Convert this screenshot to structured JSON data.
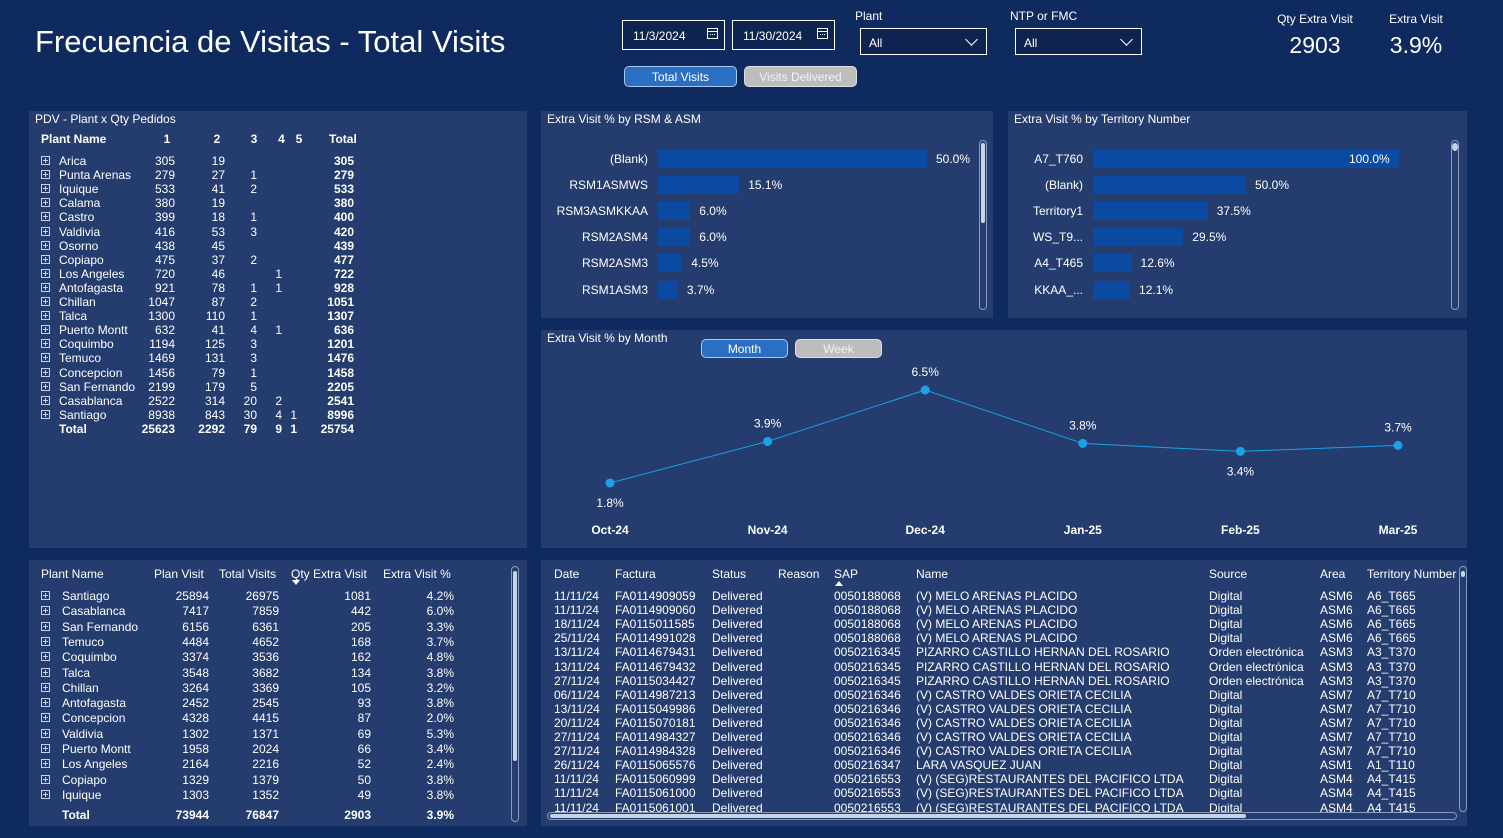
{
  "header": {
    "title": "Frecuencia de Visitas - Total Visits",
    "date_start": "11/3/2024",
    "date_end": "11/30/2024",
    "plant_label": "Plant",
    "plant_value": "All",
    "ntp_label": "NTP or FMC",
    "ntp_value": "All",
    "toggle_total": "Total Visits",
    "toggle_delivered": "Visits Delivered",
    "kpi_qty_label": "Qty Extra Visit",
    "kpi_qty_value": "2903",
    "kpi_pct_label": "Extra Visit",
    "kpi_pct_value": "3.9%"
  },
  "pdv_table": {
    "title": "PDV - Plant x Qty Pedidos",
    "columns": [
      "Plant Name",
      "1",
      "2",
      "3",
      "4",
      "5",
      "Total"
    ],
    "rows": [
      [
        "Arica",
        "305",
        "19",
        "",
        "",
        "",
        "305"
      ],
      [
        "Punta Arenas",
        "279",
        "27",
        "1",
        "",
        "",
        "279"
      ],
      [
        "Iquique",
        "533",
        "41",
        "2",
        "",
        "",
        "533"
      ],
      [
        "Calama",
        "380",
        "19",
        "",
        "",
        "",
        "380"
      ],
      [
        "Castro",
        "399",
        "18",
        "1",
        "",
        "",
        "400"
      ],
      [
        "Valdivia",
        "416",
        "53",
        "3",
        "",
        "",
        "420"
      ],
      [
        "Osorno",
        "438",
        "45",
        "",
        "",
        "",
        "439"
      ],
      [
        "Copiapo",
        "475",
        "37",
        "2",
        "",
        "",
        "477"
      ],
      [
        "Los Angeles",
        "720",
        "46",
        "",
        "1",
        "",
        "722"
      ],
      [
        "Antofagasta",
        "921",
        "78",
        "1",
        "1",
        "",
        "928"
      ],
      [
        "Chillan",
        "1047",
        "87",
        "2",
        "",
        "",
        "1051"
      ],
      [
        "Talca",
        "1300",
        "110",
        "1",
        "",
        "",
        "1307"
      ],
      [
        "Puerto Montt",
        "632",
        "41",
        "4",
        "1",
        "",
        "636"
      ],
      [
        "Coquimbo",
        "1194",
        "125",
        "3",
        "",
        "",
        "1201"
      ],
      [
        "Temuco",
        "1469",
        "131",
        "3",
        "",
        "",
        "1476"
      ],
      [
        "Concepcion",
        "1456",
        "79",
        "1",
        "",
        "",
        "1458"
      ],
      [
        "San Fernando",
        "2199",
        "179",
        "5",
        "",
        "",
        "2205"
      ],
      [
        "Casablanca",
        "2522",
        "314",
        "20",
        "2",
        "",
        "2541"
      ],
      [
        "Santiago",
        "8938",
        "843",
        "30",
        "4",
        "1",
        "8996"
      ]
    ],
    "total": [
      "Total",
      "25623",
      "2292",
      "79",
      "9",
      "1",
      "25754"
    ]
  },
  "rsm_chart": {
    "title": "Extra Visit % by RSM & ASM",
    "labels": [
      "(Blank)",
      "RSM1ASMWS",
      "RSM3ASMKKAA",
      "RSM2ASM4",
      "RSM2ASM3",
      "RSM1ASM3"
    ],
    "values": [
      50.0,
      15.1,
      6.0,
      6.0,
      4.5,
      3.7
    ],
    "value_labels": [
      "50.0%",
      "15.1%",
      "6.0%",
      "6.0%",
      "4.5%",
      "3.7%"
    ],
    "max": 50.0
  },
  "territory_chart": {
    "title": "Extra Visit % by Territory Number",
    "labels": [
      "A7_T760",
      "(Blank)",
      "Territory1",
      "WS_T9...",
      "A4_T465",
      "KKAA_..."
    ],
    "values": [
      100.0,
      50.0,
      37.5,
      29.5,
      12.6,
      12.1
    ],
    "value_labels": [
      "100.0%",
      "50.0%",
      "37.5%",
      "29.5%",
      "12.6%",
      "12.1%"
    ],
    "max": 100.0
  },
  "chart_data": {
    "type": "line",
    "title": "Extra Visit % by Month",
    "toggle_month": "Month",
    "toggle_week": "Week",
    "categories": [
      "Oct-24",
      "Nov-24",
      "Dec-24",
      "Jan-25",
      "Feb-25",
      "Mar-25"
    ],
    "values": [
      1.8,
      3.9,
      6.5,
      3.8,
      3.4,
      3.7
    ],
    "value_labels": [
      "1.8%",
      "3.9%",
      "6.5%",
      "3.8%",
      "3.4%",
      "3.7%"
    ],
    "label_position": [
      "below",
      "above",
      "above",
      "above",
      "below",
      "above"
    ],
    "ylim": [
      0,
      7.5
    ],
    "color": "#1aa3e8"
  },
  "plant_table": {
    "columns": [
      "Plant Name",
      "Plan Visit",
      "Total Visits",
      "Qty Extra Visit",
      "Extra Visit %"
    ],
    "rows": [
      [
        "Santiago",
        "25894",
        "26975",
        "1081",
        "4.2%"
      ],
      [
        "Casablanca",
        "7417",
        "7859",
        "442",
        "6.0%"
      ],
      [
        "San Fernando",
        "6156",
        "6361",
        "205",
        "3.3%"
      ],
      [
        "Temuco",
        "4484",
        "4652",
        "168",
        "3.7%"
      ],
      [
        "Coquimbo",
        "3374",
        "3536",
        "162",
        "4.8%"
      ],
      [
        "Talca",
        "3548",
        "3682",
        "134",
        "3.8%"
      ],
      [
        "Chillan",
        "3264",
        "3369",
        "105",
        "3.2%"
      ],
      [
        "Antofagasta",
        "2452",
        "2545",
        "93",
        "3.8%"
      ],
      [
        "Concepcion",
        "4328",
        "4415",
        "87",
        "2.0%"
      ],
      [
        "Valdivia",
        "1302",
        "1371",
        "69",
        "5.3%"
      ],
      [
        "Puerto Montt",
        "1958",
        "2024",
        "66",
        "3.4%"
      ],
      [
        "Los Angeles",
        "2164",
        "2216",
        "52",
        "2.4%"
      ],
      [
        "Copiapo",
        "1329",
        "1379",
        "50",
        "3.8%"
      ],
      [
        "Iquique",
        "1303",
        "1352",
        "49",
        "3.8%"
      ]
    ],
    "total": [
      "Total",
      "73944",
      "76847",
      "2903",
      "3.9%"
    ]
  },
  "detail_table": {
    "columns": [
      "Date",
      "Factura",
      "Status",
      "Reason",
      "SAP",
      "Name",
      "Source",
      "Area",
      "Territory Number"
    ],
    "rows": [
      [
        "11/11/24",
        "FA0114909059",
        "Delivered",
        "",
        "0050188068",
        "(V) MELO ARENAS PLACIDO",
        "Digital",
        "ASM6",
        "A6_T665"
      ],
      [
        "11/11/24",
        "FA0114909060",
        "Delivered",
        "",
        "0050188068",
        "(V) MELO ARENAS PLACIDO",
        "Digital",
        "ASM6",
        "A6_T665"
      ],
      [
        "18/11/24",
        "FA0115011585",
        "Delivered",
        "",
        "0050188068",
        "(V) MELO ARENAS PLACIDO",
        "Digital",
        "ASM6",
        "A6_T665"
      ],
      [
        "25/11/24",
        "FA0114991028",
        "Delivered",
        "",
        "0050188068",
        "(V) MELO ARENAS PLACIDO",
        "Digital",
        "ASM6",
        "A6_T665"
      ],
      [
        "13/11/24",
        "FA0114679431",
        "Delivered",
        "",
        "0050216345",
        "PIZARRO CASTILLO HERNAN DEL ROSARIO",
        "Orden electrónica",
        "ASM3",
        "A3_T370"
      ],
      [
        "13/11/24",
        "FA0114679432",
        "Delivered",
        "",
        "0050216345",
        "PIZARRO CASTILLO HERNAN DEL ROSARIO",
        "Orden electrónica",
        "ASM3",
        "A3_T370"
      ],
      [
        "27/11/24",
        "FA0115034427",
        "Delivered",
        "",
        "0050216345",
        "PIZARRO CASTILLO HERNAN DEL ROSARIO",
        "Orden electrónica",
        "ASM3",
        "A3_T370"
      ],
      [
        "06/11/24",
        "FA0114987213",
        "Delivered",
        "",
        "0050216346",
        "(V) CASTRO VALDES ORIETA CECILIA",
        "Digital",
        "ASM7",
        "A7_T710"
      ],
      [
        "13/11/24",
        "FA0115049986",
        "Delivered",
        "",
        "0050216346",
        "(V) CASTRO VALDES ORIETA CECILIA",
        "Digital",
        "ASM7",
        "A7_T710"
      ],
      [
        "20/11/24",
        "FA0115070181",
        "Delivered",
        "",
        "0050216346",
        "(V) CASTRO VALDES ORIETA CECILIA",
        "Digital",
        "ASM7",
        "A7_T710"
      ],
      [
        "27/11/24",
        "FA0114984327",
        "Delivered",
        "",
        "0050216346",
        "(V) CASTRO VALDES ORIETA CECILIA",
        "Digital",
        "ASM7",
        "A7_T710"
      ],
      [
        "27/11/24",
        "FA0114984328",
        "Delivered",
        "",
        "0050216346",
        "(V) CASTRO VALDES ORIETA CECILIA",
        "Digital",
        "ASM7",
        "A7_T710"
      ],
      [
        "26/11/24",
        "FA0115065576",
        "Delivered",
        "",
        "0050216347",
        "LARA VASQUEZ JUAN",
        "Digital",
        "ASM1",
        "A1_T110"
      ],
      [
        "11/11/24",
        "FA0115060999",
        "Delivered",
        "",
        "0050216553",
        "(V) (SEG)RESTAURANTES DEL PACIFICO LTDA",
        "Digital",
        "ASM4",
        "A4_T415"
      ],
      [
        "11/11/24",
        "FA0115061000",
        "Delivered",
        "",
        "0050216553",
        "(V) (SEG)RESTAURANTES DEL PACIFICO LTDA",
        "Digital",
        "ASM4",
        "A4_T415"
      ],
      [
        "11/11/24",
        "FA0115061001",
        "Delivered",
        "",
        "0050216553",
        "(V) (SEG)RESTAURANTES DEL PACIFICO LTDA",
        "Digital",
        "ASM4",
        "A4_T415"
      ]
    ]
  }
}
